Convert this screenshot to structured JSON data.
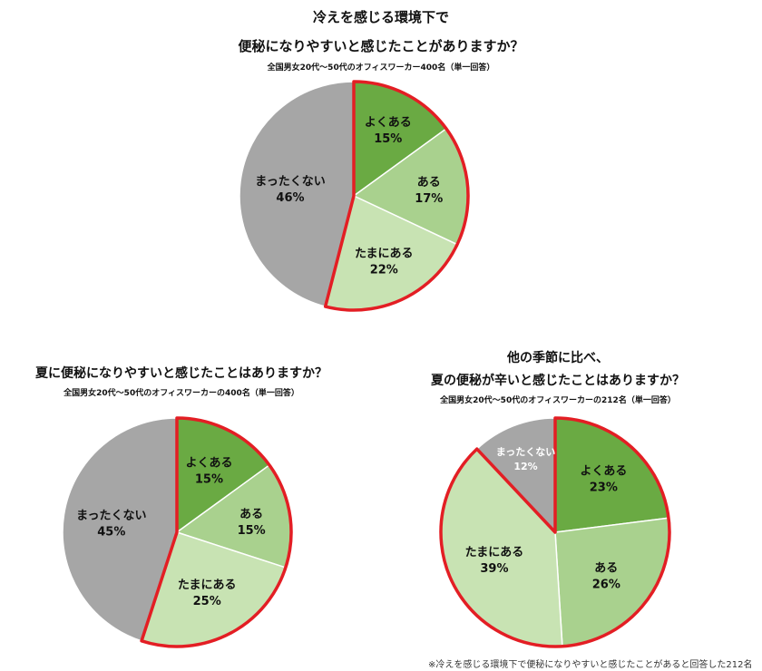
{
  "colors": {
    "yoku_aru": "#6aaa43",
    "aru": "#a9d18e",
    "tamani_aru": "#c8e3b3",
    "mattaku_nai": "#a6a6a6",
    "highlight": "#e31e24"
  },
  "chart_data": [
    {
      "type": "pie",
      "title_lines": [
        "冷えを感じる環境下で",
        "便秘になりやすいと感じたことがありますか？"
      ],
      "subtitle": "全国男女20代～50代のオフィスワーカー400名（単一回答）",
      "slices": [
        {
          "label": "よくある",
          "value": 15,
          "value_text": "15%",
          "color_key": "yoku_aru",
          "highlight": true
        },
        {
          "label": "ある",
          "value": 17,
          "value_text": "17%",
          "color_key": "aru",
          "highlight": true
        },
        {
          "label": "たまにある",
          "value": 22,
          "value_text": "22%",
          "color_key": "tamani_aru",
          "highlight": true
        },
        {
          "label": "まったくない",
          "value": 46,
          "value_text": "46%",
          "color_key": "mattaku_nai",
          "highlight": false
        }
      ]
    },
    {
      "type": "pie",
      "title_lines": [
        "夏に便秘になりやすいと感じたことはありますか？"
      ],
      "subtitle": "全国男女20代～50代のオフィスワーカーの400名（単一回答）",
      "slices": [
        {
          "label": "よくある",
          "value": 15,
          "value_text": "15%",
          "color_key": "yoku_aru",
          "highlight": true
        },
        {
          "label": "ある",
          "value": 15,
          "value_text": "15%",
          "color_key": "aru",
          "highlight": true
        },
        {
          "label": "たまにある",
          "value": 25,
          "value_text": "25%",
          "color_key": "tamani_aru",
          "highlight": true
        },
        {
          "label": "まったくない",
          "value": 45,
          "value_text": "45%",
          "color_key": "mattaku_nai",
          "highlight": false
        }
      ]
    },
    {
      "type": "pie",
      "title_lines": [
        "他の季節に比べ、",
        "夏の便秘が辛いと感じたことはありますか？"
      ],
      "subtitle": "全国男女20代～50代のオフィスワーカーの212名（単一回答）",
      "slices": [
        {
          "label": "よくある",
          "value": 23,
          "value_text": "23%",
          "color_key": "yoku_aru",
          "highlight": true
        },
        {
          "label": "ある",
          "value": 26,
          "value_text": "26%",
          "color_key": "aru",
          "highlight": true
        },
        {
          "label": "たまにある",
          "value": 39,
          "value_text": "39%",
          "color_key": "tamani_aru",
          "highlight": true
        },
        {
          "label": "まったくない",
          "value": 12,
          "value_text": "12%",
          "color_key": "mattaku_nai",
          "highlight": false
        }
      ],
      "footnote": "※冷えを感じる環境下で便秘になりやすいと感じたことがあると回答した212名"
    }
  ]
}
